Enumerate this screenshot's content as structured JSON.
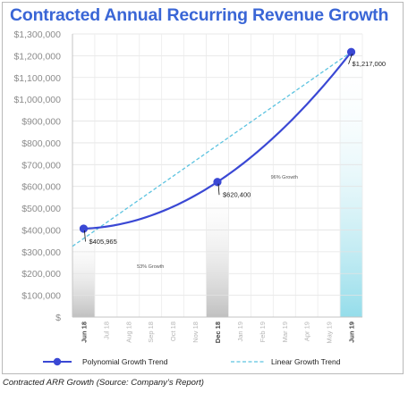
{
  "chart_data": {
    "type": "line",
    "title": "Contracted Annual Recurring Revenue Growth",
    "xlabel": "",
    "ylabel": "",
    "ylim": [
      0,
      1300000
    ],
    "ytick_step": 100000,
    "y_tick_labels": [
      "$",
      "$100,000",
      "$200,000",
      "$300,000",
      "$400,000",
      "$500,000",
      "$600,000",
      "$700,000",
      "$800,000",
      "$900,000",
      "$1,000,000",
      "$1,100,000",
      "$1,200,000",
      "$1,300,000"
    ],
    "categories": [
      "Jun 18",
      "Jul 18",
      "Aug 18",
      "Sep 18",
      "Oct 18",
      "Nov 18",
      "Dec 18",
      "Jan 19",
      "Feb 19",
      "Mar 19",
      "Apr 19",
      "May 19",
      "Jun 19"
    ],
    "highlighted_categories": [
      "Jun 18",
      "Dec 18",
      "Jun 19"
    ],
    "grid": true,
    "legend_position": "bottom",
    "series": [
      {
        "name": "Polynomial Growth Trend",
        "style": "solid",
        "color": "#3a48d4",
        "points": [
          {
            "x": "Jun 18",
            "y": 405965,
            "label": "$405,965"
          },
          {
            "x": "Dec 18",
            "y": 620400,
            "label": "$620,400"
          },
          {
            "x": "Jun 19",
            "y": 1217000,
            "label": "$1,217,000"
          }
        ]
      },
      {
        "name": "Linear Growth Trend",
        "style": "dashed",
        "color": "#5cc3e0",
        "values": [
          325000,
          1217000
        ],
        "x": [
          "Jun 18",
          "Jun 19"
        ]
      }
    ],
    "bars": [
      {
        "x": "Jun 18",
        "value": 405965,
        "color": "gray"
      },
      {
        "x": "Dec 18",
        "value": 620400,
        "color": "gray"
      },
      {
        "x": "Jun 19",
        "value": 1217000,
        "color": "cyan"
      }
    ],
    "annotations": [
      {
        "text": "53% Growth",
        "between": [
          "Jun 18",
          "Dec 18"
        ]
      },
      {
        "text": "96% Growth",
        "between": [
          "Dec 18",
          "Jun 19"
        ]
      }
    ],
    "colors": {
      "poly": "#3a48d4",
      "linear": "#5cc3e0",
      "title": "#3a66d6",
      "highlight_tick": "#444444",
      "muted_tick": "#b5b5b5"
    }
  },
  "caption": "Contracted ARR Growth (Source: Company’s Report)"
}
